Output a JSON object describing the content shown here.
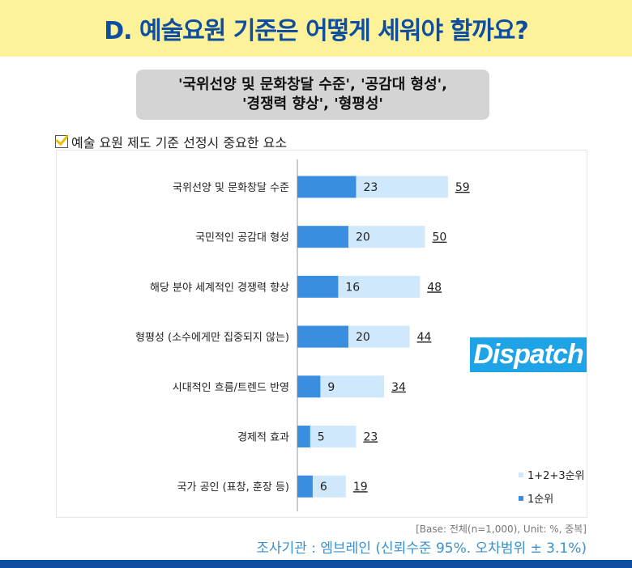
{
  "header": {
    "title": "D. 예술요원 기준은 어떻게 세워야 할까요?"
  },
  "subtitle": {
    "line1": "'국위선양 및 문화창달 수준', '공감대 형성',",
    "line2": "'경쟁력 향상', '형평성'"
  },
  "chart_data": {
    "type": "bar",
    "orientation": "horizontal",
    "title": "예술 요원 제도 기준 선정시 중요한 요소",
    "categories": [
      "국위선양 및 문화창달 수준",
      "국민적인 공감대 형성",
      "해당 분야 세계적인 경쟁력 향상",
      "형평성 (소수에게만 집중되지 않는)",
      "시대적인 흐름/트렌드 반영",
      "경제적 효과",
      "국가 공인 (표창, 훈장 등)"
    ],
    "series": [
      {
        "name": "1순위",
        "values": [
          23,
          20,
          16,
          20,
          9,
          5,
          6
        ],
        "color": "#3a8ee0"
      },
      {
        "name": "1+2+3순위",
        "values": [
          59,
          50,
          48,
          44,
          34,
          23,
          19
        ],
        "color": "#cfe8fb"
      }
    ],
    "legend": "bottom-right"
  },
  "logo": {
    "text": "Dispatch"
  },
  "footer": {
    "base": "[Base: 전체(n=1,000), Unit: %, 중복]",
    "source": "조사기관 : 엠브레인 (신뢰수준 95%. 오차범위 ± 3.1%)"
  }
}
